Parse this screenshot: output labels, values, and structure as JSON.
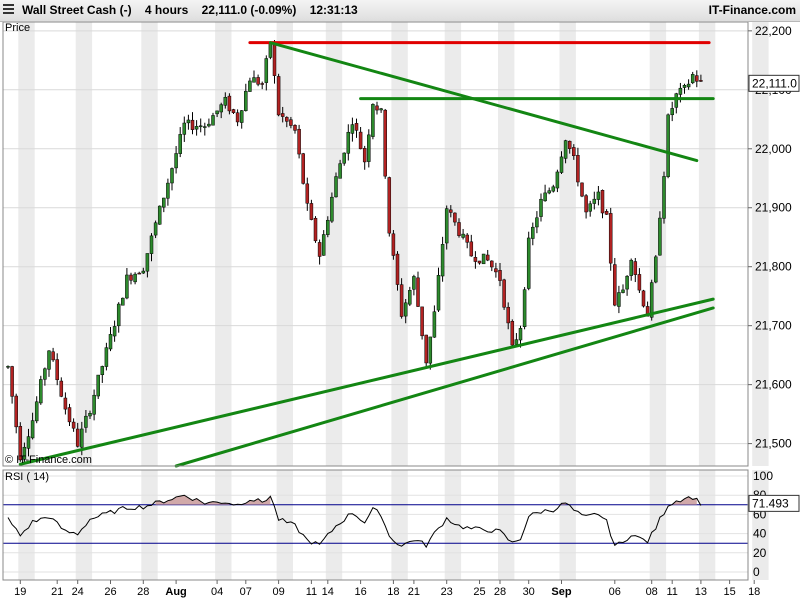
{
  "header": {
    "title_parts": [
      "Wall Street Cash (-)",
      "4 hours",
      "22,111.0 (-0.09%)",
      "12:31:13"
    ],
    "brand": "IT-Finance.com"
  },
  "watermark": "© IT-Finance.com",
  "colors": {
    "up": "#2d8a2d",
    "down": "#b22222",
    "trend": "#138613",
    "resistance": "#e00000",
    "rsi_line": "#000000",
    "rsi_level": "#00008b",
    "rsi_fill": "#c99a9a",
    "grid_band": "#ebebeb"
  },
  "chart_data": [
    {
      "type": "candlestick",
      "title": "Price",
      "price_label": "22,111.0",
      "ylim": [
        21462,
        22215
      ],
      "y_ticks": [
        "22,200",
        "22,100",
        "22,000",
        "21,900",
        "21,800",
        "21,700",
        "21,600",
        "21,500"
      ],
      "y_tick_values": [
        22200,
        22100,
        22000,
        21900,
        21800,
        21700,
        21600,
        21500
      ],
      "x_ticks": [
        {
          "label": "19",
          "bar": 3
        },
        {
          "label": "21",
          "bar": 12
        },
        {
          "label": "24",
          "bar": 17
        },
        {
          "label": "26",
          "bar": 25
        },
        {
          "label": "28",
          "bar": 33
        },
        {
          "label": "Aug",
          "bar": 41
        },
        {
          "label": "04",
          "bar": 51
        },
        {
          "label": "07",
          "bar": 58
        },
        {
          "label": "09",
          "bar": 66
        },
        {
          "label": "11",
          "bar": 74
        },
        {
          "label": "14",
          "bar": 78
        },
        {
          "label": "16",
          "bar": 86
        },
        {
          "label": "18",
          "bar": 94
        },
        {
          "label": "21",
          "bar": 99
        },
        {
          "label": "23",
          "bar": 107
        },
        {
          "label": "25",
          "bar": 115
        },
        {
          "label": "28",
          "bar": 120
        },
        {
          "label": "30",
          "bar": 127
        },
        {
          "label": "Sep",
          "bar": 135
        },
        {
          "label": "06",
          "bar": 148
        },
        {
          "label": "08",
          "bar": 157
        },
        {
          "label": "11",
          "bar": 162
        },
        {
          "label": "13",
          "bar": 169
        },
        {
          "label": "15",
          "bar": 176
        },
        {
          "label": "18",
          "bar": 182
        }
      ],
      "anchors": [
        [
          0,
          21630
        ],
        [
          3,
          21480
        ],
        [
          6,
          21540
        ],
        [
          10,
          21660
        ],
        [
          14,
          21560
        ],
        [
          17,
          21500
        ],
        [
          20,
          21560
        ],
        [
          25,
          21680
        ],
        [
          29,
          21780
        ],
        [
          33,
          21800
        ],
        [
          38,
          21920
        ],
        [
          43,
          22040
        ],
        [
          48,
          22040
        ],
        [
          53,
          22080
        ],
        [
          56,
          22050
        ],
        [
          59,
          22120
        ],
        [
          62,
          22110
        ],
        [
          64,
          22180
        ],
        [
          66,
          22060
        ],
        [
          70,
          22030
        ],
        [
          73,
          21900
        ],
        [
          76,
          21820
        ],
        [
          80,
          21950
        ],
        [
          84,
          22050
        ],
        [
          87,
          21980
        ],
        [
          89,
          22080
        ],
        [
          91,
          22060
        ],
        [
          93,
          21860
        ],
        [
          96,
          21720
        ],
        [
          99,
          21780
        ],
        [
          102,
          21640
        ],
        [
          104,
          21720
        ],
        [
          107,
          21900
        ],
        [
          110,
          21860
        ],
        [
          113,
          21820
        ],
        [
          117,
          21810
        ],
        [
          120,
          21780
        ],
        [
          123,
          21660
        ],
        [
          125,
          21700
        ],
        [
          127,
          21840
        ],
        [
          130,
          21910
        ],
        [
          133,
          21940
        ],
        [
          136,
          22020
        ],
        [
          138,
          21980
        ],
        [
          140,
          21920
        ],
        [
          141,
          21890
        ],
        [
          144,
          21920
        ],
        [
          146,
          21880
        ],
        [
          148,
          21740
        ],
        [
          150,
          21760
        ],
        [
          152,
          21820
        ],
        [
          154,
          21760
        ],
        [
          156,
          21720
        ],
        [
          158,
          21810
        ],
        [
          159,
          21890
        ],
        [
          160,
          21960
        ],
        [
          161,
          22050
        ],
        [
          163,
          22090
        ],
        [
          165,
          22100
        ],
        [
          167,
          22125
        ],
        [
          169,
          22111
        ]
      ],
      "trendlines": [
        {
          "name": "resistance",
          "from": [
            59,
            22180
          ],
          "to": [
            171,
            22180
          ]
        },
        {
          "name": "upper-channel",
          "from": [
            86,
            22085
          ],
          "to": [
            172,
            22085
          ]
        },
        {
          "name": "descending",
          "from": [
            64,
            22180
          ],
          "to": [
            168,
            21980
          ]
        },
        {
          "name": "lower-trend-1",
          "from": [
            3,
            21465
          ],
          "to": [
            172,
            21745
          ]
        },
        {
          "name": "lower-trend-2",
          "from": [
            41,
            21462
          ],
          "to": [
            172,
            21730
          ]
        }
      ]
    },
    {
      "type": "line",
      "title": "RSI ( 14)",
      "value_label": "71.493",
      "ylim": [
        0,
        100
      ],
      "y_ticks": [
        "100",
        "80",
        "60",
        "40",
        "20",
        "0"
      ],
      "y_tick_values": [
        100,
        80,
        60,
        40,
        20,
        0
      ],
      "levels": [
        70,
        30
      ],
      "anchors": [
        [
          0,
          55
        ],
        [
          3,
          38
        ],
        [
          6,
          52
        ],
        [
          10,
          58
        ],
        [
          14,
          42
        ],
        [
          17,
          40
        ],
        [
          20,
          55
        ],
        [
          25,
          62
        ],
        [
          29,
          67
        ],
        [
          33,
          68
        ],
        [
          38,
          74
        ],
        [
          43,
          80
        ],
        [
          48,
          72
        ],
        [
          53,
          73
        ],
        [
          56,
          70
        ],
        [
          59,
          76
        ],
        [
          62,
          73
        ],
        [
          64,
          79
        ],
        [
          66,
          55
        ],
        [
          70,
          48
        ],
        [
          73,
          33
        ],
        [
          76,
          28
        ],
        [
          80,
          48
        ],
        [
          84,
          62
        ],
        [
          87,
          52
        ],
        [
          89,
          65
        ],
        [
          91,
          60
        ],
        [
          93,
          37
        ],
        [
          96,
          27
        ],
        [
          99,
          34
        ],
        [
          102,
          28
        ],
        [
          104,
          40
        ],
        [
          107,
          56
        ],
        [
          110,
          48
        ],
        [
          113,
          45
        ],
        [
          117,
          44
        ],
        [
          120,
          42
        ],
        [
          123,
          30
        ],
        [
          125,
          35
        ],
        [
          127,
          58
        ],
        [
          130,
          63
        ],
        [
          133,
          65
        ],
        [
          136,
          72
        ],
        [
          138,
          64
        ],
        [
          140,
          58
        ],
        [
          141,
          57
        ],
        [
          144,
          61
        ],
        [
          146,
          52
        ],
        [
          148,
          28
        ],
        [
          150,
          30
        ],
        [
          152,
          40
        ],
        [
          154,
          35
        ],
        [
          156,
          32
        ],
        [
          158,
          46
        ],
        [
          159,
          55
        ],
        [
          160,
          62
        ],
        [
          161,
          70
        ],
        [
          163,
          74
        ],
        [
          165,
          77
        ],
        [
          167,
          78
        ],
        [
          169,
          71.5
        ]
      ]
    }
  ]
}
